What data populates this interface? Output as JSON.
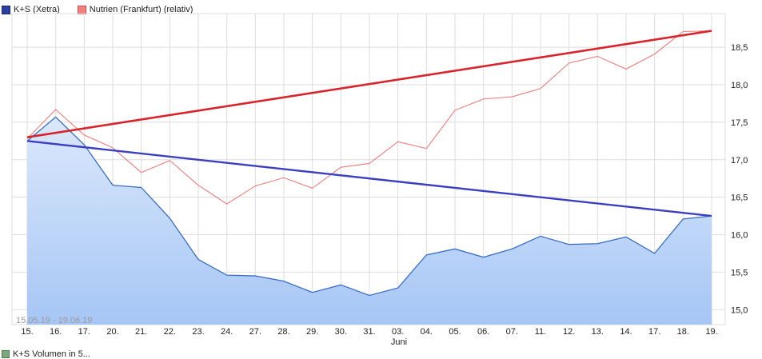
{
  "legend": [
    {
      "label": "K+S (Xetra)",
      "color": "#2a3f9e",
      "border": "#17247a"
    },
    {
      "label": "Nutrien (Frankfurt) (relativ)",
      "color": "#f08080",
      "border": "#d24a4a"
    }
  ],
  "bottom_legend": {
    "label": "K+S Volumen in 5...",
    "color": "#7fa87f"
  },
  "date_range": "15.05.19 - 19.06.19",
  "month_label": "Juni",
  "colors": {
    "main_line": "#3a6ec5",
    "area_top": "#d6e6fa",
    "area_bottom": "#9fc1f4",
    "compare_line": "#f07b7b",
    "trend_up": "#d8242c",
    "trend_down": "#3b3fc0",
    "grid": "#dddddd"
  },
  "chart_data": {
    "type": "line",
    "categories": [
      "15.",
      "16.",
      "17.",
      "20.",
      "21.",
      "22.",
      "23.",
      "24.",
      "27.",
      "28.",
      "29.",
      "30.",
      "31.",
      "03.",
      "04.",
      "05.",
      "06.",
      "07.",
      "11.",
      "12.",
      "13.",
      "14.",
      "17.",
      "18.",
      "19."
    ],
    "ylim": [
      14.8,
      18.95
    ],
    "yticks": [
      15.0,
      15.5,
      16.0,
      16.5,
      17.0,
      17.5,
      18.0,
      18.5
    ],
    "ytick_labels": [
      "15,0",
      "15,5",
      "16,0",
      "16,5",
      "17,0",
      "17,5",
      "18,0",
      "18,5"
    ],
    "series": [
      {
        "name": "K+S (Xetra)",
        "style": "area",
        "values": [
          17.25,
          17.57,
          17.2,
          16.66,
          16.63,
          16.22,
          15.67,
          15.46,
          15.45,
          15.38,
          15.23,
          15.33,
          15.19,
          15.29,
          15.73,
          15.81,
          15.7,
          15.81,
          15.98,
          15.87,
          15.88,
          15.97,
          15.75,
          16.21,
          16.25
        ]
      },
      {
        "name": "Nutrien (Frankfurt) (relativ)",
        "style": "line",
        "values": [
          17.28,
          17.67,
          17.33,
          17.16,
          16.83,
          16.99,
          16.66,
          16.41,
          16.65,
          16.76,
          16.62,
          16.9,
          16.95,
          17.24,
          17.15,
          17.66,
          17.81,
          17.84,
          17.95,
          18.29,
          18.38,
          18.21,
          18.41,
          18.71,
          18.72
        ]
      }
    ],
    "trend_lines": [
      {
        "color": "red",
        "from": 17.3,
        "to": 18.72
      },
      {
        "color": "blue",
        "from": 17.25,
        "to": 16.25
      }
    ]
  }
}
